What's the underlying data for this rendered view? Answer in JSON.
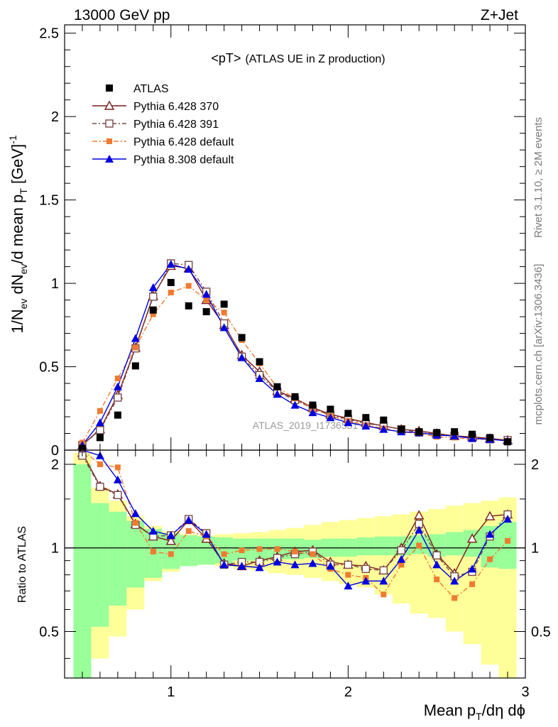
{
  "header": {
    "left": "13000 GeV pp",
    "right": "Z+Jet"
  },
  "side_labels": {
    "rivet": "Rivet 3.1.10, ≥ 2M events",
    "mcplots": "mcplots.cern.ch [arXiv:1306.3436]"
  },
  "watermark": "ATLAS_2019_I1736531",
  "chart_data": {
    "type": "line",
    "title_main": "<pT>",
    "title_sub": "(ATLAS UE in Z production)",
    "ylabel": "1/N_ev dN_ev/d mean p_T [GeV]^-1",
    "ratio_ylabel": "Ratio to ATLAS",
    "xlabel": "Mean p_T/dη dϕ",
    "xlim": [
      0.4,
      3.0
    ],
    "ylim": [
      0,
      2.55
    ],
    "ratio_ylim": [
      0.34,
      2.25
    ],
    "ratio_log": true,
    "x_ticks": [
      "1",
      "2",
      "3"
    ],
    "y_ticks": [
      "0",
      "0.5",
      "1",
      "1.5",
      "2",
      "2.5"
    ],
    "ratio_ticks": [
      "0.5",
      "1",
      "2"
    ],
    "legend_position": "top-left",
    "x": [
      0.5,
      0.6,
      0.7,
      0.8,
      0.9,
      1.0,
      1.1,
      1.2,
      1.3,
      1.4,
      1.5,
      1.6,
      1.7,
      1.8,
      1.9,
      2.0,
      2.1,
      2.2,
      2.3,
      2.4,
      2.5,
      2.6,
      2.7,
      2.8,
      2.9
    ],
    "series": [
      {
        "name": "ATLAS",
        "color": "#000000",
        "marker": "square-filled",
        "dash": "",
        "values": [
          0.01,
          0.075,
          0.21,
          0.505,
          0.84,
          1.005,
          0.865,
          0.83,
          0.875,
          0.675,
          0.53,
          0.38,
          0.32,
          0.27,
          0.245,
          0.22,
          0.195,
          0.18,
          0.125,
          0.11,
          0.105,
          0.11,
          0.095,
          0.075,
          0.05
        ]
      },
      {
        "name": "Pythia 6.428 370",
        "color": "#7a1a1a",
        "marker": "triangle-open",
        "dash": "",
        "values": [
          0.03,
          0.125,
          0.33,
          0.615,
          0.925,
          1.105,
          1.09,
          0.9,
          0.75,
          0.57,
          0.47,
          0.355,
          0.31,
          0.255,
          0.215,
          0.19,
          0.165,
          0.145,
          0.125,
          0.115,
          0.1,
          0.085,
          0.08,
          0.07,
          0.06
        ]
      },
      {
        "name": "Pythia 6.428 391",
        "color": "#7a4a4a",
        "marker": "square-open",
        "dash": "6,3,2,3",
        "values": [
          0.03,
          0.12,
          0.315,
          0.61,
          0.92,
          1.12,
          1.11,
          0.95,
          0.76,
          0.56,
          0.45,
          0.35,
          0.3,
          0.25,
          0.21,
          0.185,
          0.16,
          0.145,
          0.125,
          0.105,
          0.095,
          0.085,
          0.075,
          0.065,
          0.06
        ]
      },
      {
        "name": "Pythia 6.428 default",
        "color": "#f07a30",
        "marker": "square-small",
        "dash": "7,3,2,3",
        "values": [
          0.045,
          0.235,
          0.43,
          0.615,
          0.815,
          0.945,
          0.985,
          0.9,
          0.825,
          0.66,
          0.52,
          0.375,
          0.31,
          0.25,
          0.205,
          0.175,
          0.15,
          0.13,
          0.11,
          0.1,
          0.08,
          0.075,
          0.065,
          0.065,
          0.055
        ]
      },
      {
        "name": "Pythia 8.308 default",
        "color": "#0000e0",
        "marker": "triangle-filled",
        "dash": "",
        "values": [
          0.03,
          0.165,
          0.38,
          0.67,
          0.975,
          1.115,
          1.085,
          0.935,
          0.735,
          0.555,
          0.43,
          0.335,
          0.27,
          0.225,
          0.195,
          0.165,
          0.145,
          0.125,
          0.11,
          0.105,
          0.09,
          0.085,
          0.07,
          0.065,
          0.055
        ]
      }
    ],
    "ratio_series": [
      {
        "name": "Pythia 6.428 370",
        "values": [
          2.2,
          1.67,
          1.56,
          1.22,
          1.1,
          1.06,
          1.26,
          1.08,
          0.88,
          0.86,
          0.9,
          0.93,
          0.97,
          0.98,
          0.89,
          0.87,
          0.86,
          0.83,
          1.0,
          1.31,
          0.95,
          0.81,
          1.08,
          1.3,
          1.32
        ]
      },
      {
        "name": "Pythia 6.428 391",
        "values": [
          2.15,
          1.66,
          1.55,
          1.21,
          1.1,
          1.11,
          1.27,
          1.13,
          0.87,
          0.89,
          0.89,
          0.92,
          0.95,
          0.97,
          0.87,
          0.87,
          0.84,
          0.83,
          0.98,
          1.22,
          0.94,
          0.79,
          0.82,
          1.1,
          1.32
        ]
      },
      {
        "name": "Pythia 6.428 default",
        "values": [
          2.7,
          2.0,
          1.95,
          1.23,
          0.97,
          0.95,
          1.15,
          1.1,
          0.95,
          0.98,
          0.99,
          0.99,
          0.97,
          0.95,
          0.84,
          0.8,
          0.78,
          0.68,
          0.87,
          1.02,
          0.77,
          0.66,
          0.74,
          0.91,
          1.06
        ]
      },
      {
        "name": "Pythia 8.308 default",
        "values": [
          2.3,
          2.15,
          1.76,
          1.33,
          1.15,
          1.11,
          1.26,
          1.12,
          0.87,
          0.86,
          0.85,
          0.89,
          0.87,
          0.88,
          0.86,
          0.73,
          0.76,
          0.76,
          0.91,
          1.16,
          0.87,
          0.76,
          0.84,
          1.12,
          1.27
        ]
      }
    ],
    "uncertainty_band": {
      "inner_low": [
        0.34,
        0.52,
        0.62,
        0.72,
        0.78,
        0.84,
        0.86,
        0.87,
        0.88,
        0.9,
        0.9,
        0.91,
        0.91,
        0.92,
        0.93,
        0.93,
        0.94,
        0.94,
        0.94,
        0.95,
        0.93,
        0.94,
        0.93,
        0.85,
        0.84
      ],
      "inner_high": [
        2.0,
        1.45,
        1.35,
        1.25,
        1.17,
        1.13,
        1.11,
        1.1,
        1.09,
        1.08,
        1.08,
        1.08,
        1.08,
        1.07,
        1.08,
        1.08,
        1.09,
        1.1,
        1.1,
        1.11,
        1.12,
        1.14,
        1.16,
        1.2,
        1.24
      ],
      "outer_low": [
        0.34,
        0.4,
        0.48,
        0.6,
        0.76,
        0.82,
        0.86,
        0.87,
        0.86,
        0.84,
        0.83,
        0.81,
        0.8,
        0.78,
        0.76,
        0.74,
        0.72,
        0.68,
        0.63,
        0.58,
        0.56,
        0.5,
        0.45,
        0.38,
        0.34
      ],
      "outer_high": [
        2.2,
        1.65,
        1.48,
        1.3,
        1.2,
        1.15,
        1.12,
        1.11,
        1.12,
        1.13,
        1.14,
        1.16,
        1.18,
        1.21,
        1.24,
        1.26,
        1.28,
        1.3,
        1.32,
        1.35,
        1.38,
        1.42,
        1.45,
        1.48,
        1.52
      ]
    }
  }
}
